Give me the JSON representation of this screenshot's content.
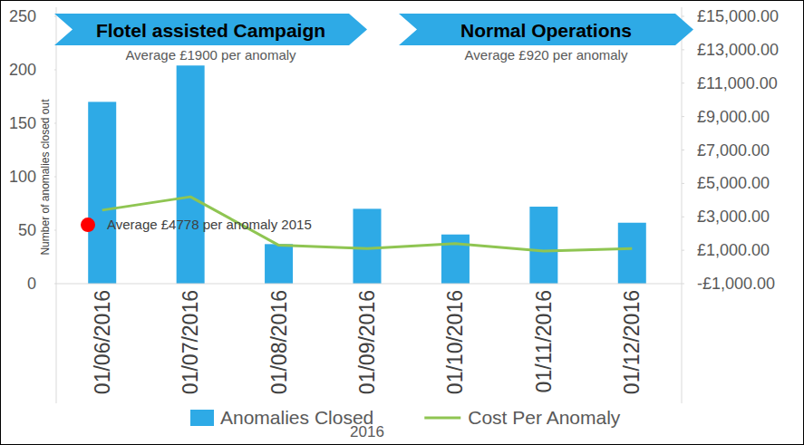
{
  "chart_data": {
    "type": "bar",
    "categories": [
      "01/06/2016",
      "01/07/2016",
      "01/08/2016",
      "01/09/2016",
      "01/10/2016",
      "01/11/2016",
      "01/12/2016"
    ],
    "x_label": "2016",
    "y_label": "Number of anomalies closed out",
    "series": [
      {
        "name": "Anomalies Closed",
        "type": "bar",
        "color": "#2eaae6",
        "values": [
          170,
          204,
          37,
          70,
          46,
          72,
          57
        ]
      },
      {
        "name": "Cost Per Anomaly",
        "type": "line",
        "axis": "y2",
        "color": "#8fc552",
        "values": [
          3400,
          4200,
          1300,
          1100,
          1400,
          950,
          1100
        ]
      }
    ],
    "ylim": [
      0,
      250
    ],
    "yticks": [
      0,
      50,
      100,
      150,
      200,
      250
    ],
    "y2lim": [
      -1000,
      15000
    ],
    "y2ticks": [
      {
        "value": -1000,
        "label": "-£1,000.00"
      },
      {
        "value": 1000,
        "label": "£1,000.00"
      },
      {
        "value": 3000,
        "label": "£3,000.00"
      },
      {
        "value": 5000,
        "label": "£5,000.00"
      },
      {
        "value": 7000,
        "label": "£7,000.00"
      },
      {
        "value": 9000,
        "label": "£9,000.00"
      },
      {
        "value": 11000,
        "label": "£11,000.00"
      },
      {
        "value": 13000,
        "label": "£13,000.00"
      },
      {
        "value": 15000,
        "label": "£15,000.00"
      }
    ],
    "grid": false,
    "legend": "bottom",
    "phases": [
      {
        "label": "Flotel assisted Campaign",
        "subtitle": "Average £1900 per anomaly"
      },
      {
        "label": "Normal Operations",
        "subtitle": "Average £920 per anomaly"
      }
    ],
    "annotations": [
      {
        "text": "Average £4778 per anomaly 2015",
        "y": 55,
        "color": "#ff0000",
        "marker": "circle"
      }
    ]
  }
}
